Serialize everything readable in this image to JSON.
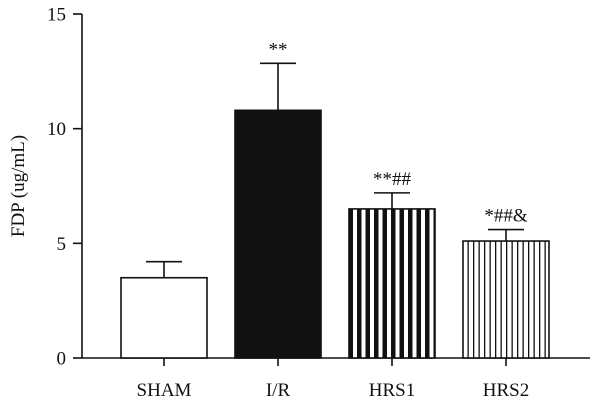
{
  "chart_data": {
    "type": "bar",
    "ylabel": "FDP (ug/mL)",
    "xlabel": "",
    "ylim": [
      0,
      15
    ],
    "yticks": [
      0,
      5,
      10,
      15
    ],
    "categories": [
      "SHAM",
      "I/R",
      "HRS1",
      "HRS2"
    ],
    "values": [
      3.5,
      10.8,
      6.5,
      5.1
    ],
    "errors": [
      0.7,
      2.05,
      0.7,
      0.5
    ],
    "significance": [
      "",
      "**",
      "**##",
      "*##&"
    ],
    "fills": [
      "open",
      "solid",
      "wide-vertical-stripes",
      "narrow-vertical-stripes"
    ],
    "colors": {
      "ink": "#111111",
      "background": "#ffffff"
    },
    "grid": false,
    "legend": "none"
  }
}
